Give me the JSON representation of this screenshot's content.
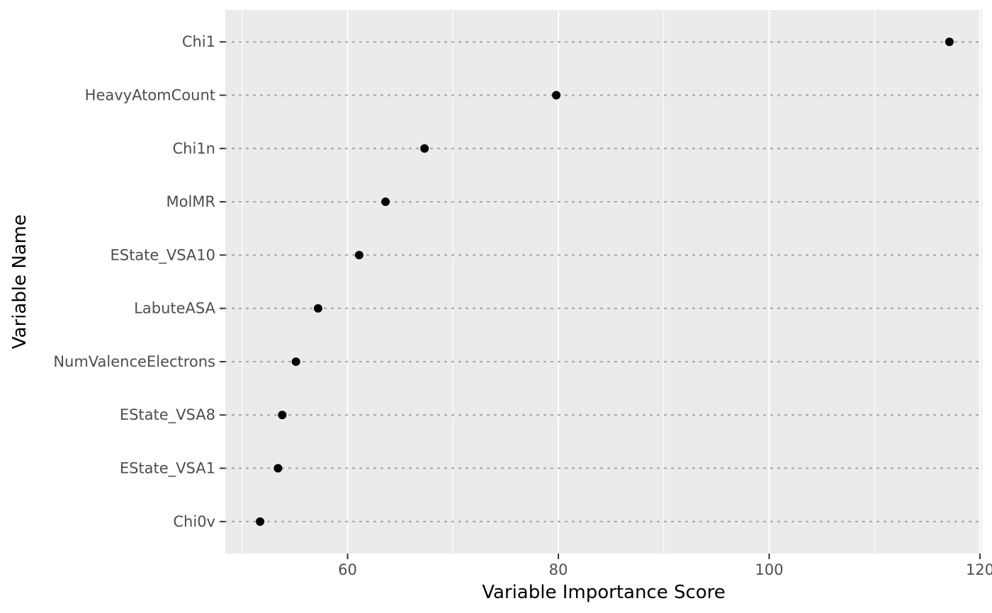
{
  "chart_data": {
    "type": "scatter",
    "xlabel": "Variable Importance Score",
    "ylabel": "Variable Name",
    "xlim": [
      48.4,
      120.2
    ],
    "x_ticks": [
      60,
      80,
      100,
      120
    ],
    "x_minor_ticks": [
      50,
      70,
      90,
      110
    ],
    "grid": true,
    "points": [
      {
        "label": "Chi1",
        "value": 117.1
      },
      {
        "label": "HeavyAtomCount",
        "value": 79.8
      },
      {
        "label": "Chi1n",
        "value": 67.3
      },
      {
        "label": "MolMR",
        "value": 63.6
      },
      {
        "label": "EState_VSA10",
        "value": 61.1
      },
      {
        "label": "LabuteASA",
        "value": 57.2
      },
      {
        "label": "NumValenceElectrons",
        "value": 55.1
      },
      {
        "label": "EState_VSA8",
        "value": 53.8
      },
      {
        "label": "EState_VSA1",
        "value": 53.4
      },
      {
        "label": "Chi0v",
        "value": 51.7
      }
    ],
    "colors": {
      "panel": "#ebebeb",
      "grid": "#ffffff",
      "point": "#000000",
      "guide": "#a6a6a6"
    }
  }
}
